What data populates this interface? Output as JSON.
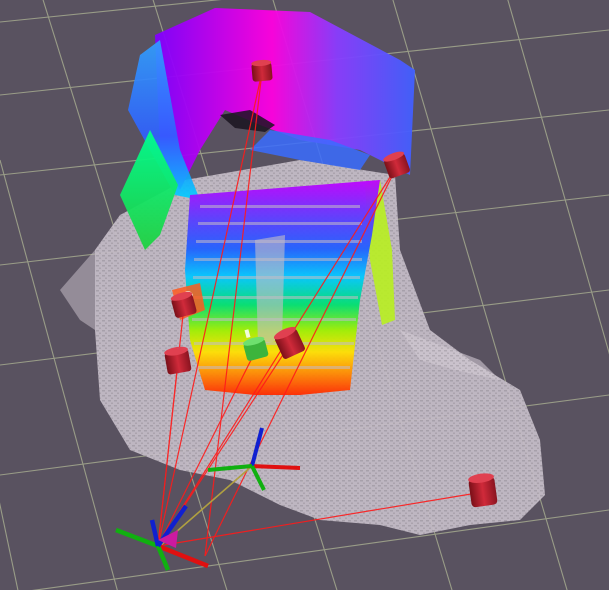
{
  "viewport": {
    "background_color": "#595260",
    "grid_color": "#a0a58c",
    "floor_cloud_color": "#c4bcc6",
    "ray_color": "#ff1a1a",
    "landmark_color": "#c21d2e",
    "tracked_object_color": "#3cb43c",
    "axis_colors": {
      "x": "#e01010",
      "y": "#10b010",
      "z": "#1020d0"
    },
    "link_color": "#b0a040",
    "elements": {
      "grid": "reference-grid",
      "point_cloud": "colored-point-cloud",
      "robot_frame": "robot-base-frame",
      "sensor_frame": "sensor-frame",
      "landmarks": "cylinder-landmarks",
      "rays": "observation-rays"
    }
  }
}
